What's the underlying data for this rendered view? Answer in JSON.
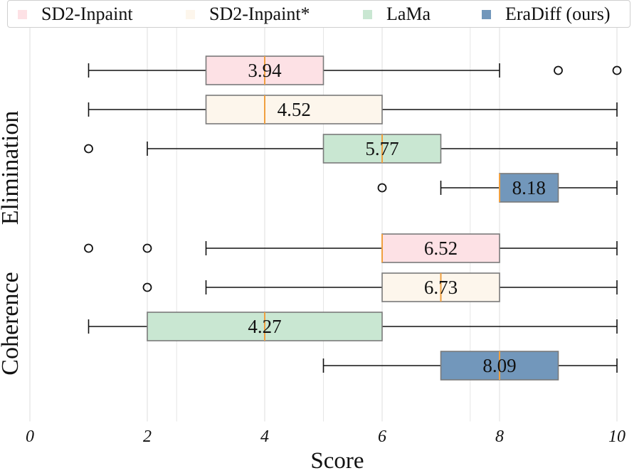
{
  "chart_data": {
    "type": "boxplot",
    "orientation": "horizontal",
    "xlabel": "Score",
    "xlim": [
      -0.3,
      10.3
    ],
    "xticks": [
      "0",
      "2",
      "4",
      "6",
      "8",
      "10"
    ],
    "minor_gridlines_at": [
      2.5,
      5,
      7.5
    ],
    "groups": [
      {
        "name": "Elimination",
        "rows": [
          0,
          1,
          2,
          3
        ]
      },
      {
        "name": "Coherence",
        "rows": [
          4,
          5,
          6,
          7
        ]
      }
    ],
    "legend": [
      {
        "label": "SD2-Inpaint",
        "color": "#fde1e5"
      },
      {
        "label": "SD2-Inpaint*",
        "color": "#fdf6ec"
      },
      {
        "label": "LaMa",
        "color": "#c9e7d2"
      },
      {
        "label": "EraDiff (ours)",
        "color": "#7297bb"
      }
    ],
    "series": [
      {
        "group": "Elimination",
        "method": "SD2-Inpaint",
        "whisker_low": 1,
        "q1": 3,
        "median": 4,
        "q3": 5,
        "whisker_high": 8,
        "outliers": [
          9,
          10
        ],
        "mean_label": "3.94",
        "color": "#fde1e5"
      },
      {
        "group": "Elimination",
        "method": "SD2-Inpaint*",
        "whisker_low": 1,
        "q1": 3,
        "median": 4,
        "q3": 6,
        "whisker_high": 10,
        "outliers": [],
        "mean_label": "4.52",
        "color": "#fdf6ec"
      },
      {
        "group": "Elimination",
        "method": "LaMa",
        "whisker_low": 2,
        "q1": 5,
        "median": 6,
        "q3": 7,
        "whisker_high": 10,
        "outliers": [
          1
        ],
        "mean_label": "5.77",
        "color": "#c9e7d2"
      },
      {
        "group": "Elimination",
        "method": "EraDiff (ours)",
        "whisker_low": 7,
        "q1": 8,
        "median": 8,
        "q3": 9,
        "whisker_high": 10,
        "outliers": [
          6
        ],
        "mean_label": "8.18",
        "color": "#7297bb"
      },
      {
        "group": "Coherence",
        "method": "SD2-Inpaint",
        "whisker_low": 3,
        "q1": 6,
        "median": 6,
        "q3": 8,
        "whisker_high": 10,
        "outliers": [
          1,
          2
        ],
        "mean_label": "6.52",
        "color": "#fde1e5"
      },
      {
        "group": "Coherence",
        "method": "SD2-Inpaint*",
        "whisker_low": 3,
        "q1": 6,
        "median": 7,
        "q3": 8,
        "whisker_high": 10,
        "outliers": [
          2
        ],
        "mean_label": "6.73",
        "color": "#fdf6ec"
      },
      {
        "group": "Coherence",
        "method": "LaMa",
        "whisker_low": 1,
        "q1": 2,
        "median": 4,
        "q3": 6,
        "whisker_high": 10,
        "outliers": [],
        "mean_label": "4.27",
        "color": "#c9e7d2"
      },
      {
        "group": "Coherence",
        "method": "EraDiff (ours)",
        "whisker_low": 5,
        "q1": 7,
        "median": 8,
        "q3": 9,
        "whisker_high": 10,
        "outliers": [],
        "mean_label": "8.09",
        "color": "#7297bb"
      }
    ],
    "median_color": "#f0a040"
  }
}
